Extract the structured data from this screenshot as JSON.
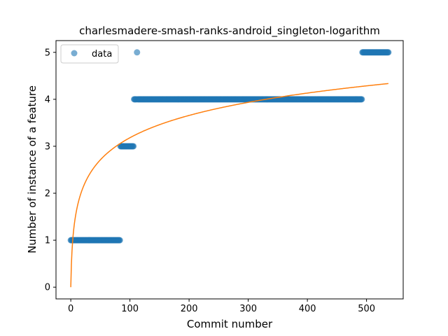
{
  "chart_data": {
    "type": "scatter",
    "title": "charlesmadere-smash-ranks-android_singleton-logarithm",
    "xlabel": "Commit number",
    "ylabel": "Number of instance of a feature",
    "xlim": [
      -25,
      562
    ],
    "ylim": [
      -0.25,
      5.25
    ],
    "xticks": [
      0,
      100,
      200,
      300,
      400,
      500
    ],
    "yticks": [
      0,
      1,
      2,
      3,
      4,
      5
    ],
    "grid": false,
    "legend": {
      "position": "top-left",
      "entries": [
        "data"
      ]
    },
    "colors": {
      "data": "#1f77b4",
      "fit": "#ff7f0e"
    },
    "series": [
      {
        "name": "data",
        "kind": "scatter",
        "segments": [
          {
            "x_start": 0,
            "x_end": 83,
            "y": 1
          },
          {
            "x_start": 84,
            "x_end": 106,
            "y": 3
          },
          {
            "x_start": 107,
            "x_end": 111,
            "y": 4
          },
          {
            "x_start": 112,
            "x_end": 112,
            "y": 5
          },
          {
            "x_start": 113,
            "x_end": 492,
            "y": 4
          },
          {
            "x_start": 493,
            "x_end": 537,
            "y": 5
          }
        ]
      },
      {
        "kind": "line",
        "function": "logarithm",
        "x_range": [
          0,
          537
        ],
        "coefficients": {
          "a": 0.6895,
          "b": 1.0
        }
      }
    ]
  }
}
